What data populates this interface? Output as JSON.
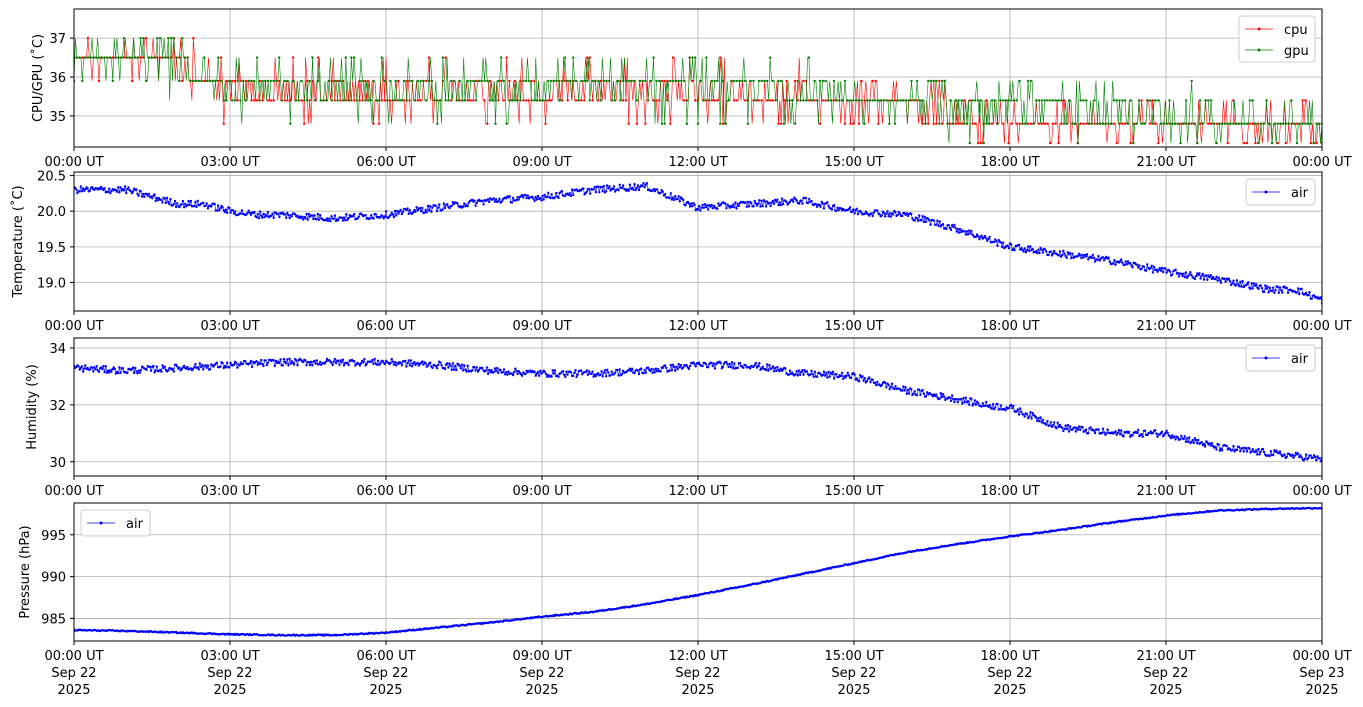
{
  "colors": {
    "cpu": "#ff0000",
    "gpu": "#008000",
    "air": "#0000ff",
    "grid": "#b0b0b0"
  },
  "x_ticks": [
    "00:00 UT",
    "03:00 UT",
    "06:00 UT",
    "09:00 UT",
    "12:00 UT",
    "15:00 UT",
    "18:00 UT",
    "21:00 UT",
    "00:00 UT"
  ],
  "x_ticks_date": [
    "Sep 22",
    "Sep 22",
    "Sep 22",
    "Sep 22",
    "Sep 22",
    "Sep 22",
    "Sep 22",
    "Sep 22",
    "Sep 23"
  ],
  "x_ticks_year": [
    "2025",
    "2025",
    "2025",
    "2025",
    "2025",
    "2025",
    "2025",
    "2025",
    "2025"
  ],
  "chart_data": [
    {
      "type": "line",
      "ylabel": "CPU/GPU (˚C)",
      "xlim": [
        "2025-09-22 00:00",
        "2025-09-23 00:00"
      ],
      "ylim": [
        34.2,
        37.75
      ],
      "yticks": [
        35,
        36,
        37
      ],
      "grid": true,
      "legend": "top-right",
      "series": [
        {
          "name": "cpu",
          "color": "#ff0000",
          "x_hours": [
            0,
            0.5,
            1,
            1.5,
            2,
            2.5,
            3,
            4,
            5,
            6,
            7,
            8,
            9,
            10,
            11,
            12,
            13,
            14,
            15,
            16,
            16.5,
            17,
            18,
            19,
            20,
            21,
            22,
            23,
            24
          ],
          "values": [
            36.4,
            36.4,
            36.4,
            36.4,
            36.3,
            35.9,
            35.6,
            35.6,
            35.6,
            35.6,
            35.6,
            35.6,
            35.6,
            35.6,
            35.6,
            35.6,
            35.5,
            35.5,
            35.4,
            35.4,
            35.1,
            35.0,
            34.9,
            34.9,
            34.9,
            34.8,
            34.8,
            34.7,
            34.6
          ]
        },
        {
          "name": "gpu",
          "color": "#008000",
          "x_hours": [
            0,
            0.5,
            1,
            1.5,
            2,
            2.5,
            3,
            4,
            5,
            6,
            7,
            8,
            9,
            10,
            11,
            12,
            13,
            14,
            15,
            16,
            16.5,
            17,
            18,
            19,
            20,
            21,
            22,
            23,
            24
          ],
          "values": [
            36.4,
            36.4,
            36.4,
            36.4,
            36.2,
            35.9,
            35.7,
            35.6,
            35.6,
            35.7,
            35.7,
            35.7,
            35.8,
            35.8,
            35.8,
            35.8,
            35.7,
            35.6,
            35.5,
            35.4,
            35.3,
            35.2,
            35.2,
            35.2,
            35.1,
            35.0,
            34.9,
            34.8,
            34.8
          ]
        }
      ]
    },
    {
      "type": "line",
      "ylabel": "Temperature (˚C)",
      "xlim": [
        "2025-09-22 00:00",
        "2025-09-23 00:00"
      ],
      "ylim": [
        18.6,
        20.55
      ],
      "yticks": [
        19.0,
        19.5,
        20.0,
        20.5
      ],
      "ytick_labels": [
        "19.0",
        "19.5",
        "20.0",
        "20.5"
      ],
      "grid": true,
      "legend": "top-right",
      "series": [
        {
          "name": "air",
          "color": "#0000ff",
          "x_hours": [
            0,
            0.5,
            1,
            1.5,
            2,
            2.5,
            3,
            3.5,
            4,
            5,
            6,
            7,
            8,
            9,
            10,
            11,
            11.5,
            12,
            13,
            14,
            15,
            16,
            17,
            18,
            19,
            20,
            21,
            22,
            23,
            23.5,
            24
          ],
          "values": [
            20.3,
            20.3,
            20.3,
            20.2,
            20.1,
            20.1,
            20.0,
            19.95,
            19.95,
            19.9,
            19.95,
            20.05,
            20.15,
            20.2,
            20.3,
            20.35,
            20.2,
            20.05,
            20.1,
            20.15,
            20.0,
            19.95,
            19.75,
            19.5,
            19.4,
            19.3,
            19.15,
            19.05,
            18.9,
            18.9,
            18.75
          ]
        }
      ]
    },
    {
      "type": "line",
      "ylabel": "Humidity (%)",
      "xlim": [
        "2025-09-22 00:00",
        "2025-09-23 00:00"
      ],
      "ylim": [
        29.5,
        34.35
      ],
      "yticks": [
        30,
        32,
        34
      ],
      "grid": true,
      "legend": "top-right",
      "series": [
        {
          "name": "air",
          "color": "#0000ff",
          "x_hours": [
            0,
            1,
            2,
            3,
            4,
            5,
            6,
            7,
            8,
            9,
            10,
            11,
            12,
            13,
            14,
            15,
            16,
            17,
            17.5,
            18,
            19,
            20,
            21,
            22,
            23,
            24
          ],
          "values": [
            33.3,
            33.2,
            33.3,
            33.4,
            33.5,
            33.5,
            33.5,
            33.4,
            33.2,
            33.1,
            33.1,
            33.2,
            33.4,
            33.4,
            33.1,
            33.0,
            32.5,
            32.2,
            32.0,
            31.9,
            31.2,
            31.0,
            31.0,
            30.5,
            30.3,
            30.1
          ]
        }
      ]
    },
    {
      "type": "line",
      "ylabel": "Pressure (hPa)",
      "xlim": [
        "2025-09-22 00:00",
        "2025-09-23 00:00"
      ],
      "ylim": [
        982.3,
        998.8
      ],
      "yticks": [
        985,
        990,
        995
      ],
      "grid": true,
      "legend": "top-left",
      "series": [
        {
          "name": "air",
          "color": "#0000ff",
          "x_hours": [
            0,
            1,
            2,
            3,
            4,
            5,
            6,
            7,
            8,
            9,
            10,
            11,
            12,
            13,
            14,
            15,
            16,
            17,
            18,
            19,
            20,
            21,
            22,
            23,
            24
          ],
          "values": [
            983.6,
            983.5,
            983.3,
            983.1,
            983.0,
            983.0,
            983.3,
            983.9,
            984.5,
            985.2,
            985.8,
            986.7,
            987.8,
            989.0,
            990.3,
            991.6,
            992.9,
            993.9,
            994.8,
            995.6,
            996.5,
            997.3,
            997.9,
            998.1,
            998.2
          ]
        }
      ]
    }
  ]
}
